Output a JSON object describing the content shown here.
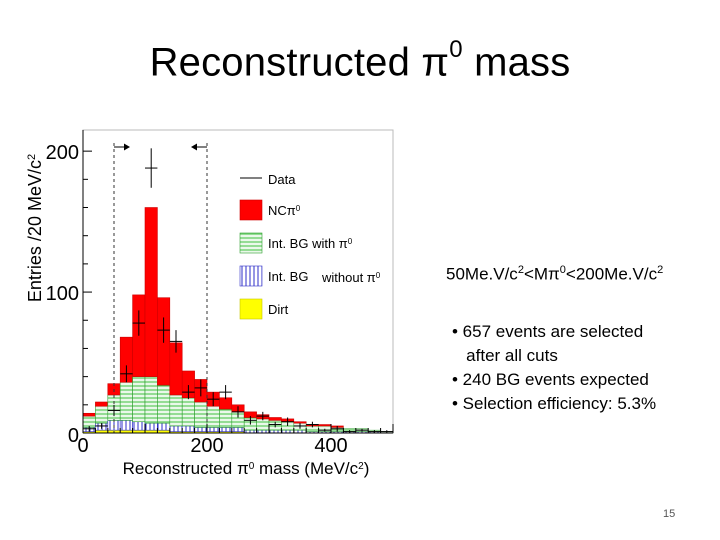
{
  "slide": {
    "title_main": "Reconstructed π",
    "title_sup": "0",
    "title_tail": " mass",
    "cut_label_a": "50Me.V/c",
    "cut_label_sup1": "2",
    "cut_label_b": "<Mπ",
    "cut_label_sup2": "0",
    "cut_label_c": "<200Me.V/c",
    "cut_label_sup3": "2",
    "bullets": [
      "• 657 events are selected",
      "   after all cuts",
      "• 240 BG events expected",
      "• Selection efficiency: 5.3%"
    ],
    "page_number": "15"
  },
  "chart_data": {
    "type": "bar",
    "subtype": "stacked-histogram",
    "bin_width": 20,
    "x_bin_edges": [
      0,
      20,
      40,
      60,
      80,
      100,
      120,
      140,
      160,
      180,
      200,
      220,
      240,
      260,
      280,
      300,
      320,
      340,
      360,
      380,
      400,
      420,
      440,
      460,
      480,
      500
    ],
    "xlim": [
      0,
      500
    ],
    "ylim": [
      0,
      215
    ],
    "xlabel_main": "Reconstructed π",
    "xlabel_sup": "0",
    "xlabel_tail": " mass (MeV/c",
    "xlabel_sup2": "2",
    "xlabel_end": ")",
    "ylabel": "Entries /20 MeV/c",
    "ylabel_sup": "2",
    "x_ticks": [
      0,
      200,
      400
    ],
    "x_tick_labels": [
      "0",
      "200",
      "400"
    ],
    "y_ticks": [
      0,
      100,
      200
    ],
    "y_tick_labels": [
      "0",
      "100",
      "200"
    ],
    "cut_lines": [
      50,
      200
    ],
    "series": [
      {
        "name": "Dirt",
        "label": "Dirt",
        "color": "#ffff00",
        "values": [
          1,
          2,
          2,
          2,
          2,
          2,
          2,
          1,
          1,
          1,
          1,
          1,
          1,
          0,
          0,
          0,
          0,
          0,
          0,
          0,
          0,
          0,
          0,
          0,
          0
        ]
      },
      {
        "name": "Int. BG without π0",
        "label_a": "Int. BG",
        "label_b": "without π",
        "label_sup": "0",
        "color": "#2d2dc8",
        "values": [
          3,
          5,
          7,
          7,
          6,
          5,
          5,
          4,
          4,
          3,
          3,
          3,
          3,
          2,
          2,
          2,
          2,
          2,
          1,
          1,
          1,
          1,
          1,
          1,
          0
        ]
      },
      {
        "name": "Int. BG with π0",
        "label": "Int. BG with π",
        "label_sup": "0",
        "color": "#3fbf3f",
        "values": [
          8,
          12,
          18,
          27,
          32,
          33,
          27,
          22,
          20,
          18,
          15,
          13,
          11,
          9,
          8,
          7,
          6,
          5,
          4,
          4,
          3,
          2,
          2,
          1,
          1
        ]
      },
      {
        "name": "NCπ0",
        "label": "NCπ",
        "label_sup": "0",
        "color": "#ff0000",
        "values": [
          2,
          3,
          8,
          32,
          58,
          120,
          62,
          37,
          19,
          16,
          10,
          8,
          5,
          4,
          3,
          2,
          2,
          1,
          1,
          1,
          1,
          0,
          0,
          0,
          0
        ]
      }
    ],
    "data_points": {
      "name": "Data",
      "label": "Data",
      "x": [
        10,
        30,
        50,
        70,
        90,
        110,
        130,
        150,
        170,
        190,
        210,
        230,
        250,
        270,
        290,
        310,
        330,
        350,
        370,
        390,
        410,
        430,
        450,
        470,
        490
      ],
      "y": [
        3,
        5,
        16,
        42,
        78,
        188,
        73,
        65,
        29,
        32,
        24,
        29,
        15,
        9,
        12,
        6,
        8,
        5,
        6,
        2,
        3,
        1,
        2,
        1,
        1
      ],
      "err": [
        2,
        2,
        4,
        6,
        9,
        14,
        9,
        8,
        5,
        6,
        5,
        5,
        4,
        3,
        3,
        2,
        3,
        2,
        2,
        1,
        2,
        1,
        1,
        1,
        1
      ]
    }
  }
}
